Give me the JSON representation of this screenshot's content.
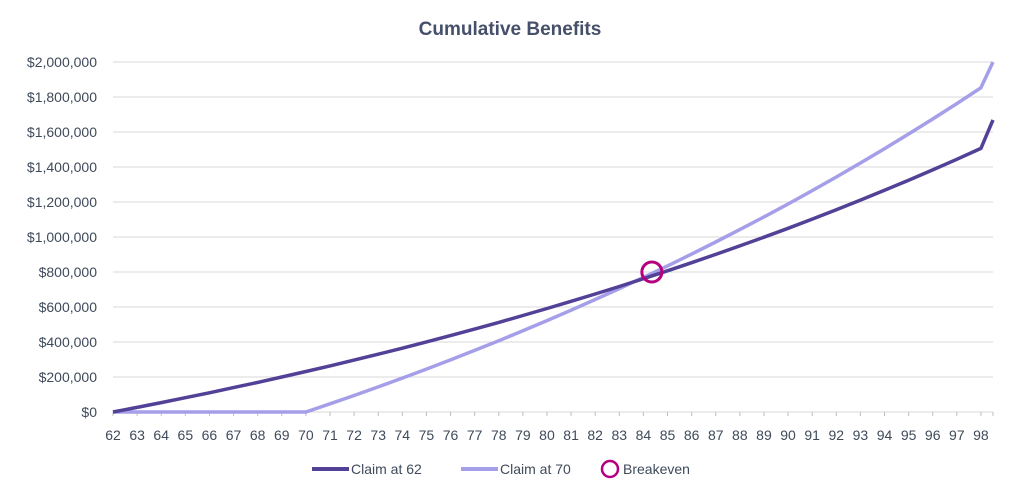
{
  "chart_data": {
    "type": "line",
    "title": "Cumulative Benefits",
    "xlabel": "",
    "ylabel": "",
    "x": [
      62,
      63,
      64,
      65,
      66,
      67,
      68,
      69,
      70,
      71,
      72,
      73,
      74,
      75,
      76,
      77,
      78,
      79,
      80,
      81,
      82,
      83,
      84,
      85,
      86,
      87,
      88,
      89,
      90,
      91,
      92,
      93,
      94,
      95,
      96,
      97,
      98
    ],
    "xlim": [
      62,
      98.5
    ],
    "ylim": [
      0,
      2000000
    ],
    "y_ticks": [
      0,
      200000,
      400000,
      600000,
      800000,
      1000000,
      1200000,
      1400000,
      1600000,
      1800000,
      2000000
    ],
    "y_tick_labels": [
      "$0",
      "$200,000",
      "$400,000",
      "$600,000",
      "$800,000",
      "$1,000,000",
      "$1,200,000",
      "$1,400,000",
      "$1,600,000",
      "$1,800,000",
      "$2,000,000"
    ],
    "x_tick_labels": [
      "62",
      "63",
      "64",
      "65",
      "66",
      "67",
      "68",
      "69",
      "70",
      "71",
      "72",
      "73",
      "74",
      "75",
      "76",
      "77",
      "78",
      "79",
      "80",
      "81",
      "82",
      "83",
      "84",
      "85",
      "86",
      "87",
      "88",
      "89",
      "90",
      "91",
      "92",
      "93",
      "94",
      "95",
      "96",
      "97",
      "98"
    ],
    "grid": true,
    "legend_position": "bottom",
    "series": [
      {
        "name": "Claim at 62",
        "color": "#534197",
        "values": [
          0,
          26500,
          53700,
          81500,
          110000,
          139200,
          169100,
          199800,
          231200,
          263400,
          296400,
          330200,
          364800,
          400300,
          436700,
          474000,
          512100,
          551200,
          591300,
          632300,
          674300,
          717400,
          761500,
          806700,
          853000,
          900500,
          949100,
          998900,
          1049900,
          1102200,
          1155800,
          1210700,
          1266900,
          1324500,
          1383600,
          1444100,
          1506100
        ]
      },
      {
        "name": "Claim at 70",
        "color": "#a59ee8",
        "values": [
          0,
          0,
          0,
          0,
          0,
          0,
          0,
          0,
          0,
          46600,
          94400,
          143400,
          193600,
          245100,
          297800,
          351800,
          407200,
          463900,
          522100,
          581700,
          642700,
          705300,
          769400,
          835100,
          902400,
          971400,
          1042100,
          1114600,
          1188800,
          1264900,
          1342800,
          1422700,
          1504600,
          1588500,
          1674400,
          1762500,
          1852800
        ]
      }
    ],
    "end_point": {
      "x": 98.5,
      "claim_at_62": 1669000,
      "claim_at_70": 2000000
    },
    "breakeven": {
      "label": "Breakeven",
      "x": 84.35,
      "y": 800000,
      "color": "#b5007f"
    }
  }
}
